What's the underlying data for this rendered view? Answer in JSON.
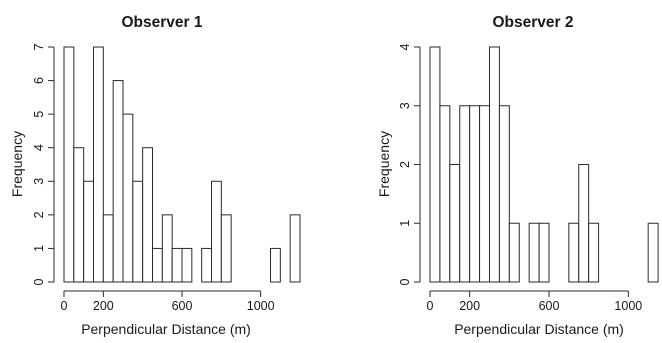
{
  "chart_data": [
    {
      "type": "histogram",
      "title": "Observer 1",
      "xlabel": "Perpendicular Distance (m)",
      "ylabel": "Frequency",
      "xticks": [
        0,
        200,
        600,
        1000
      ],
      "yticks": [
        0,
        1,
        2,
        3,
        4,
        5,
        6,
        7
      ],
      "xlim": [
        0,
        1200
      ],
      "ylim": [
        0,
        7
      ],
      "bin_width": 50,
      "bin_starts": [
        0,
        50,
        100,
        150,
        200,
        250,
        300,
        350,
        400,
        450,
        500,
        550,
        600,
        650,
        700,
        750,
        800,
        850,
        900,
        950,
        1000,
        1050,
        1100,
        1150
      ],
      "values": [
        7,
        4,
        3,
        7,
        2,
        6,
        5,
        3,
        4,
        1,
        2,
        1,
        1,
        0,
        1,
        3,
        2,
        0,
        0,
        0,
        0,
        1,
        0,
        2
      ],
      "grid": false
    },
    {
      "type": "histogram",
      "title": "Observer 2",
      "xlabel": "Perpendicular Distance (m)",
      "ylabel": "Frequency",
      "xticks": [
        0,
        200,
        600,
        1000
      ],
      "yticks": [
        0,
        1,
        2,
        3,
        4
      ],
      "xlim": [
        0,
        1150
      ],
      "ylim": [
        0,
        4
      ],
      "bin_width": 50,
      "bin_starts": [
        0,
        50,
        100,
        150,
        200,
        250,
        300,
        350,
        400,
        450,
        500,
        550,
        600,
        650,
        700,
        750,
        800,
        850,
        900,
        950,
        1000,
        1050,
        1100
      ],
      "values": [
        4,
        3,
        2,
        3,
        3,
        3,
        4,
        3,
        1,
        0,
        1,
        1,
        0,
        0,
        1,
        2,
        1,
        0,
        0,
        0,
        0,
        0,
        1
      ],
      "grid": false
    }
  ]
}
